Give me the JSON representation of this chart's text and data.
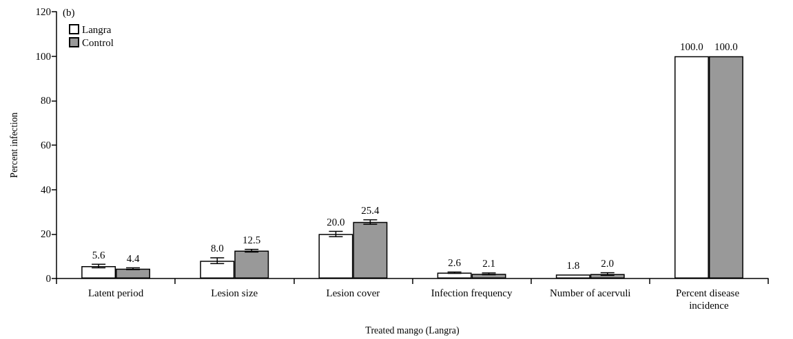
{
  "chart_data": {
    "type": "bar",
    "xlabel": "Treated mango (Langra)",
    "ylabel": "Percent infection",
    "annotations": [
      "(b)"
    ],
    "categories": [
      "Latent period",
      "Lesion size",
      "Lesion cover",
      "Infection frequency",
      "Number of acervuli",
      "Percent disease incidence"
    ],
    "series": [
      {
        "name": "Langra",
        "color": "#ffffff",
        "values": [
          5.6,
          8.0,
          20.0,
          2.6,
          1.8,
          100.0
        ],
        "errors": [
          0.8,
          1.3,
          1.2,
          0.3,
          null,
          null
        ],
        "value_labels": [
          "5.6",
          "8.0",
          "20.0",
          "2.6",
          "1.8",
          "100.0"
        ]
      },
      {
        "name": "Control",
        "color": "#999999",
        "values": [
          4.4,
          12.5,
          25.4,
          2.1,
          2.0,
          100.0
        ],
        "errors": [
          0.4,
          0.6,
          1.0,
          0.4,
          0.6,
          null
        ],
        "value_labels": [
          "4.4",
          "12.5",
          "25.4",
          "2.1",
          "2.0",
          "100.0"
        ]
      }
    ],
    "ylim": [
      0,
      120
    ],
    "yticks": [
      0,
      20,
      40,
      60,
      80,
      100,
      120
    ],
    "grid": false,
    "legend": "top left"
  }
}
